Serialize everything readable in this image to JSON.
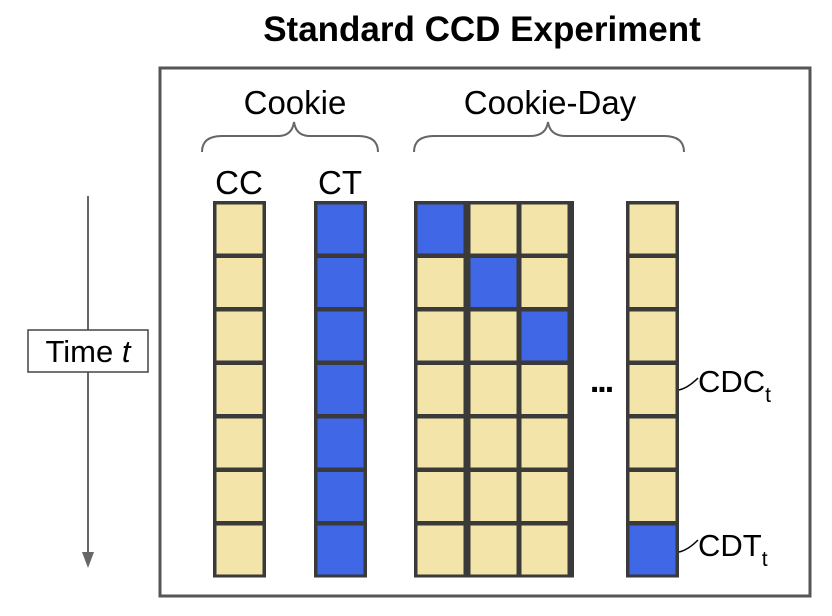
{
  "title": "Standard CCD Experiment",
  "groups": {
    "cookie": "Cookie",
    "cookie_day": "Cookie-Day"
  },
  "columns": {
    "cc": "CC",
    "ct": "CT"
  },
  "time_label": {
    "prefix": "Time ",
    "var": "t"
  },
  "ellipsis": "...",
  "annotations": {
    "cdc": {
      "base": "CDC",
      "sub": "t"
    },
    "cdt": {
      "base": "CDT",
      "sub": "t"
    }
  },
  "colors": {
    "control": "#f3e4aa",
    "treatment": "#3f67e6",
    "cell_border": "#3a3a3a",
    "frame": "#555555",
    "arrow": "#666666"
  },
  "grid": {
    "rows": 7,
    "cc": [
      "C",
      "C",
      "C",
      "C",
      "C",
      "C",
      "C"
    ],
    "ct": [
      "T",
      "T",
      "T",
      "T",
      "T",
      "T",
      "T"
    ],
    "cookie_day": [
      [
        "T",
        "C",
        "C"
      ],
      [
        "C",
        "T",
        "C"
      ],
      [
        "C",
        "C",
        "T"
      ],
      [
        "C",
        "C",
        "C"
      ],
      [
        "C",
        "C",
        "C"
      ],
      [
        "C",
        "C",
        "C"
      ],
      [
        "C",
        "C",
        "C"
      ]
    ],
    "last": [
      "C",
      "C",
      "C",
      "C",
      "C",
      "C",
      "T"
    ]
  }
}
